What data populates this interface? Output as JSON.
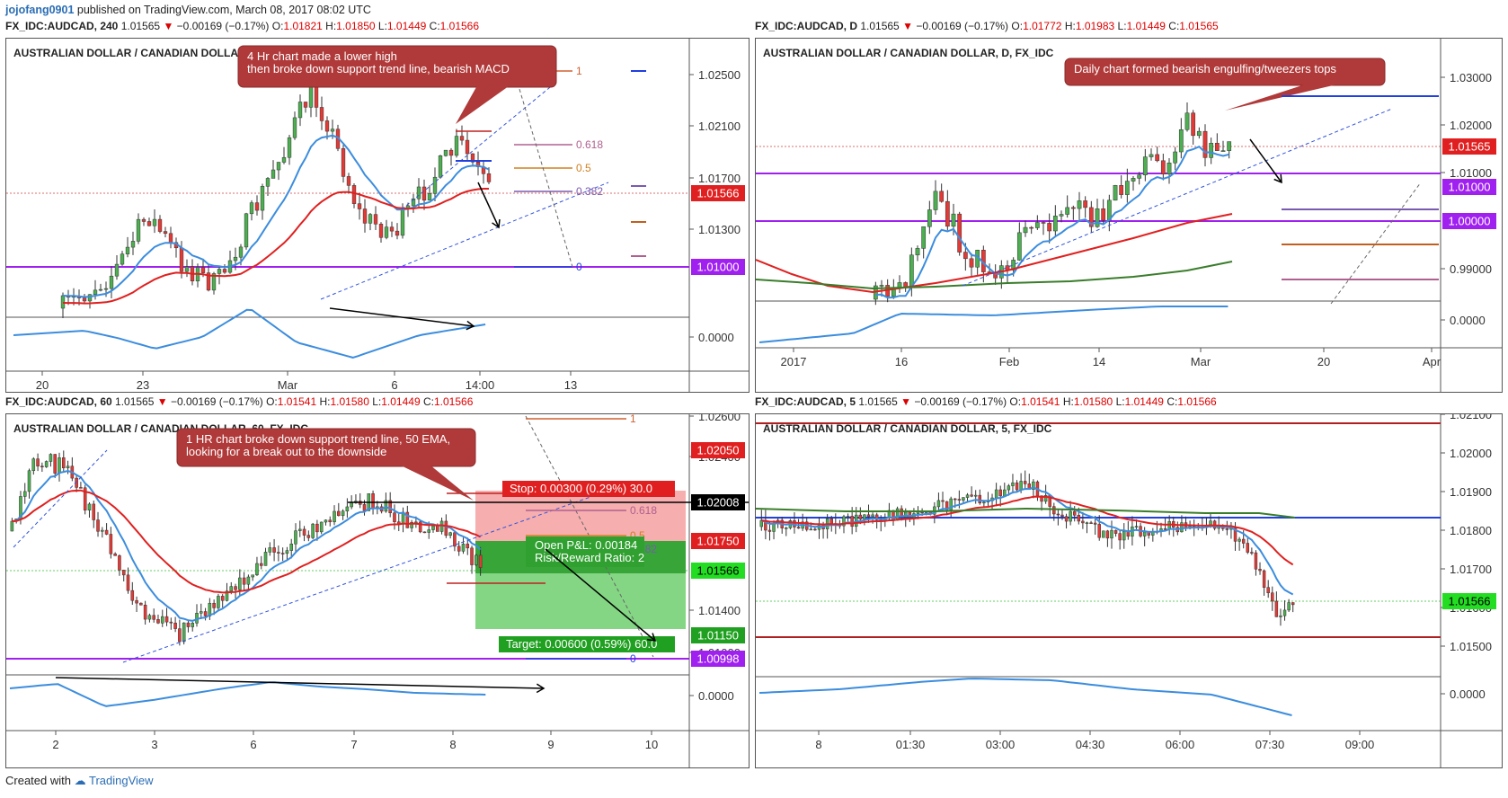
{
  "header": {
    "user": "jojofang0901",
    "published": "published on TradingView.com, March 08, 2017 08:02 UTC"
  },
  "footer": {
    "created_with": "Created with",
    "brand": "TradingView"
  },
  "colors": {
    "up": "#4caf50",
    "down": "#e53935",
    "ema_fast": "#3c8dde",
    "ema_slow": "#e02020",
    "sma_long": "#3a7d2b",
    "support": "#a020f0",
    "axis_price_bg": "#e02020"
  },
  "panels": [
    {
      "id": "p1",
      "topline": {
        "sym": "FX_IDC:AUDCAD, 240",
        "last": "1.01565",
        "chg": "−0.00169 (−0.17%)",
        "o": "1.01821",
        "h": "1.01850",
        "l": "1.01449",
        "c": "1.01566"
      },
      "symbol": "AUSTRALIAN DOLLAR / CANADIAN DOLLAR, 240, FX_IDC",
      "annotation": "4 Hr chart made a lower high\nthen broke down support trend line, bearish MACD",
      "price_ticks": [
        "1.02500",
        "1.02100",
        "1.01700",
        "1.01300"
      ],
      "price_labels": [
        {
          "text": "1.01566",
          "kind": "last"
        },
        {
          "text": "1.01000",
          "kind": "support"
        }
      ],
      "osc_ticks": [
        "0.0000"
      ],
      "fib": [
        "1",
        "0.618",
        "0.5",
        "0.382",
        "0"
      ],
      "time_ticks": [
        "20",
        "23",
        "Mar",
        "6",
        "14:00",
        "13"
      ]
    },
    {
      "id": "p2",
      "topline": {
        "sym": "FX_IDC:AUDCAD, D",
        "last": "1.01565",
        "chg": "−0.00169 (−0.17%)",
        "o": "1.01772",
        "h": "1.01983",
        "l": "1.01449",
        "c": "1.01565"
      },
      "symbol": "AUSTRALIAN DOLLAR / CANADIAN DOLLAR, D, FX_IDC",
      "annotation": "Daily chart formed bearish engulfing/tweezers tops",
      "price_ticks": [
        "1.03000",
        "1.02000",
        "1.01000",
        "0.99000"
      ],
      "price_labels": [
        {
          "text": "1.01565",
          "kind": "last"
        },
        {
          "text": "1.01000",
          "kind": "support"
        },
        {
          "text": "1.00000",
          "kind": "support"
        }
      ],
      "osc_ticks": [
        "0.0000"
      ],
      "time_ticks": [
        "2017",
        "16",
        "Feb",
        "14",
        "Mar",
        "20",
        "Apr"
      ]
    },
    {
      "id": "p3",
      "topline": {
        "sym": "FX_IDC:AUDCAD, 60",
        "last": "1.01565",
        "chg": "−0.00169 (−0.17%)",
        "o": "1.01541",
        "h": "1.01580",
        "l": "1.01449",
        "c": "1.01566"
      },
      "symbol": "AUSTRALIAN DOLLAR / CANADIAN DOLLAR, 60, FX_IDC",
      "annotation": "1 HR chart broke down support trend line, 50 EMA,\nlooking for a break out to the downside",
      "price_ticks": [
        "1.02600",
        "1.02400",
        "1.01400",
        "1.01000"
      ],
      "price_labels": [
        {
          "text": "1.02050",
          "kind": "stop"
        },
        {
          "text": "1.02008",
          "kind": "black"
        },
        {
          "text": "1.01750",
          "kind": "entry"
        },
        {
          "text": "1.01566",
          "kind": "lastgreen"
        },
        {
          "text": "1.01150",
          "kind": "target"
        },
        {
          "text": "1.00998",
          "kind": "support"
        }
      ],
      "osc_ticks": [
        "0.0000"
      ],
      "fib": [
        "1",
        "0.618",
        "0.5",
        "0.382",
        "0"
      ],
      "position": {
        "stop": "Stop: 0.00300 (0.29%) 30.0",
        "pnl": "Open P&L: 0.00184",
        "rr": "Risk/Reward Ratio: 2",
        "target": "Target: 0.00600 (0.59%) 60.0"
      },
      "time_ticks": [
        "2",
        "3",
        "6",
        "7",
        "8",
        "9",
        "10"
      ]
    },
    {
      "id": "p4",
      "topline": {
        "sym": "FX_IDC:AUDCAD, 5",
        "last": "1.01565",
        "chg": "−0.00169 (−0.17%)",
        "o": "1.01541",
        "h": "1.01580",
        "l": "1.01449",
        "c": "1.01566"
      },
      "symbol": "AUSTRALIAN DOLLAR / CANADIAN DOLLAR, 5, FX_IDC",
      "price_ticks": [
        "1.02100",
        "1.02000",
        "1.01900",
        "1.01800",
        "1.01700",
        "1.01600",
        "1.01500"
      ],
      "price_labels": [
        {
          "text": "1.01566",
          "kind": "lastgreen"
        }
      ],
      "osc_ticks": [
        "0.0000"
      ],
      "time_ticks": [
        "8",
        "01:30",
        "03:00",
        "04:30",
        "06:00",
        "07:30",
        "09:00"
      ]
    }
  ],
  "chart_data": [
    {
      "type": "candlestick",
      "title": "AUSTRALIAN DOLLAR / CANADIAN DOLLAR, 240, FX_IDC",
      "ylim": [
        1.0095,
        1.027
      ],
      "key_levels": {
        "support": 1.01,
        "last": 1.01566
      },
      "x_ticks": [
        "20",
        "23",
        "Mar",
        "6",
        "14:00",
        "13"
      ]
    },
    {
      "type": "candlestick",
      "title": "AUSTRALIAN DOLLAR / CANADIAN DOLLAR, D, FX_IDC",
      "ylim": [
        0.975,
        1.035
      ],
      "key_levels": {
        "support": [
          1.01,
          1.0
        ],
        "last": 1.01565
      },
      "x_ticks": [
        "2017",
        "16",
        "Feb",
        "14",
        "Mar",
        "20",
        "Apr"
      ]
    },
    {
      "type": "candlestick",
      "title": "AUSTRALIAN DOLLAR / CANADIAN DOLLAR, 60, FX_IDC",
      "ylim": [
        1.0092,
        1.0265
      ],
      "key_levels": {
        "stop": 1.0205,
        "entry": 1.0175,
        "target": 1.0115,
        "support": 1.00998,
        "last": 1.01566
      },
      "x_ticks": [
        "2",
        "3",
        "6",
        "7",
        "8",
        "9",
        "10"
      ]
    },
    {
      "type": "candlestick",
      "title": "AUSTRALIAN DOLLAR / CANADIAN DOLLAR, 5, FX_IDC",
      "ylim": [
        1.0142,
        1.0212
      ],
      "key_levels": {
        "last": 1.01566
      },
      "x_ticks": [
        "8",
        "01:30",
        "03:00",
        "04:30",
        "06:00",
        "07:30",
        "09:00"
      ]
    }
  ]
}
